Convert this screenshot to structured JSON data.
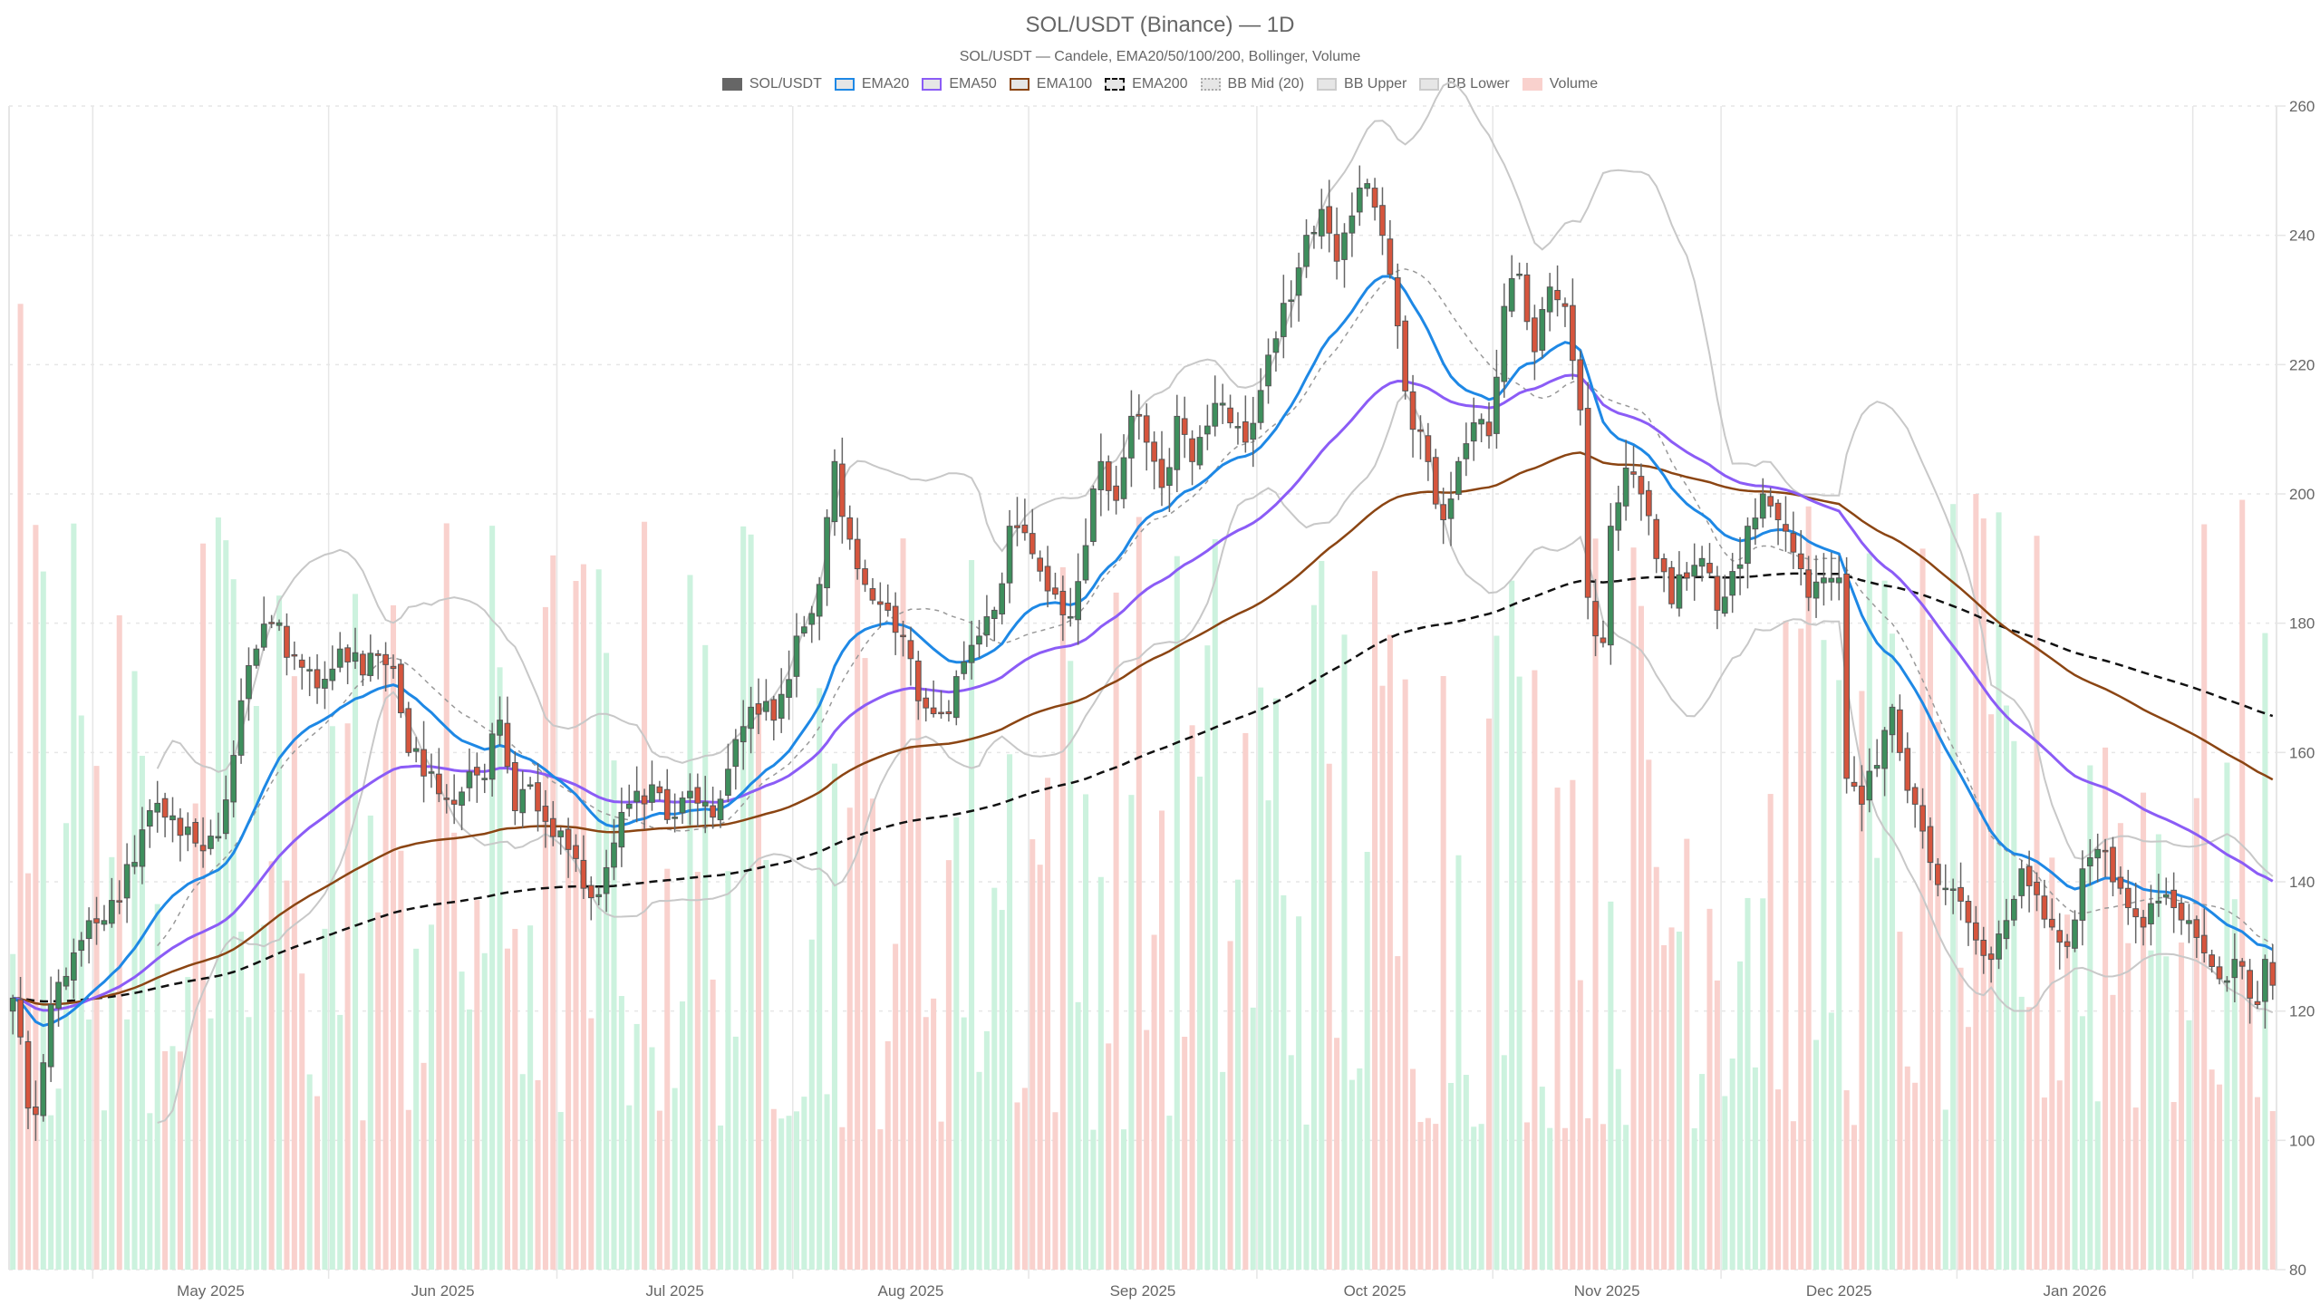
{
  "header": {
    "title": "SOL/USDT (Binance) — 1D",
    "subtitle": "SOL/USDT — Candele, EMA20/50/100/200, Bollinger, Volume"
  },
  "legend": [
    {
      "label": "SOL/USDT",
      "style": "solid-fill",
      "fill": "#666666",
      "border": "#666666"
    },
    {
      "label": "EMA20",
      "style": "line",
      "fill": "#e6e6e6",
      "border": "#1e88e5"
    },
    {
      "label": "EMA50",
      "style": "line",
      "fill": "#e6e6e6",
      "border": "#8b5cf6"
    },
    {
      "label": "EMA100",
      "style": "line",
      "fill": "#e6e6e6",
      "border": "#8b4513"
    },
    {
      "label": "EMA200",
      "style": "dashed",
      "fill": "#e6e6e6",
      "border": "#111111"
    },
    {
      "label": "BB Mid (20)",
      "style": "dotted",
      "fill": "#e6e6e6",
      "border": "#aaaaaa"
    },
    {
      "label": "BB Upper",
      "style": "line",
      "fill": "#e6e6e6",
      "border": "#cccccc"
    },
    {
      "label": "BB Lower",
      "style": "line",
      "fill": "#e6e6e6",
      "border": "#cccccc"
    },
    {
      "label": "Volume",
      "style": "solid-fill",
      "fill": "#f9d1cd",
      "border": "#f9d1cd"
    }
  ],
  "colors": {
    "up": "#3e8f5d",
    "down": "#d6553d",
    "wick": "#666666",
    "vol_up": "#ccf2de",
    "vol_down": "#f9d1cd",
    "ema20": "#1e88e5",
    "ema50": "#8b5cf6",
    "ema100": "#8b4513",
    "ema200": "#111111",
    "bb_mid": "#999999",
    "bb_band": "#c8c8c8",
    "grid": "#e6e6e6"
  },
  "chart_data": {
    "type": "candlestick",
    "title": "SOL/USDT (Binance) — 1D",
    "subtitle": "SOL/USDT — Candele, EMA20/50/100/200, Bollinger, Volume",
    "xlabel": "",
    "ylabel": "",
    "ylim": [
      80,
      260
    ],
    "y_ticks": [
      80,
      100,
      120,
      140,
      160,
      180,
      200,
      220,
      240,
      260
    ],
    "y_axis_position": "right",
    "x_tick_labels": [
      "May 2025",
      "Jun 2025",
      "Jul 2025",
      "Aug 2025",
      "Sep 2025",
      "Oct 2025",
      "Nov 2025",
      "Dec 2025",
      "Jan 2026"
    ],
    "grid": true,
    "legend_position": "top",
    "start_date": "2025-04-20",
    "num_candles": 298,
    "series": [
      {
        "name": "SOL/USDT",
        "type": "candlestick"
      },
      {
        "name": "EMA20",
        "type": "line"
      },
      {
        "name": "EMA50",
        "type": "line"
      },
      {
        "name": "EMA100",
        "type": "line"
      },
      {
        "name": "EMA200",
        "type": "line"
      },
      {
        "name": "BB Mid (20)",
        "type": "line"
      },
      {
        "name": "BB Upper",
        "type": "line"
      },
      {
        "name": "BB Lower",
        "type": "line"
      },
      {
        "name": "Volume",
        "type": "bar"
      }
    ],
    "close_anchors": [
      [
        0,
        122
      ],
      [
        1,
        116
      ],
      [
        2,
        105
      ],
      [
        3,
        104
      ],
      [
        4,
        112
      ],
      [
        5,
        121
      ],
      [
        8,
        129
      ],
      [
        12,
        134
      ],
      [
        16,
        143
      ],
      [
        18,
        151
      ],
      [
        20,
        150
      ],
      [
        24,
        146
      ],
      [
        27,
        147
      ],
      [
        30,
        168
      ],
      [
        32,
        176
      ],
      [
        34,
        180
      ],
      [
        37,
        175
      ],
      [
        40,
        170
      ],
      [
        43,
        176
      ],
      [
        46,
        172
      ],
      [
        48,
        175
      ],
      [
        50,
        173
      ],
      [
        52,
        160
      ],
      [
        55,
        157
      ],
      [
        58,
        152
      ],
      [
        60,
        157
      ],
      [
        62,
        156
      ],
      [
        64,
        165
      ],
      [
        66,
        151
      ],
      [
        68,
        155
      ],
      [
        71,
        147
      ],
      [
        73,
        145
      ],
      [
        75,
        139
      ],
      [
        77,
        138
      ],
      [
        79,
        146
      ],
      [
        81,
        152
      ],
      [
        84,
        155
      ],
      [
        87,
        150
      ],
      [
        89,
        154
      ],
      [
        92,
        150
      ],
      [
        95,
        162
      ],
      [
        97,
        167
      ],
      [
        100,
        165
      ],
      [
        103,
        178
      ],
      [
        106,
        186
      ],
      [
        108,
        205
      ],
      [
        110,
        193
      ],
      [
        112,
        186
      ],
      [
        115,
        182
      ],
      [
        117,
        178
      ],
      [
        119,
        168
      ],
      [
        121,
        166
      ],
      [
        123,
        166
      ],
      [
        125,
        174
      ],
      [
        127,
        178
      ],
      [
        129,
        182
      ],
      [
        131,
        195
      ],
      [
        133,
        194
      ],
      [
        136,
        185
      ],
      [
        139,
        181
      ],
      [
        141,
        192
      ],
      [
        143,
        205
      ],
      [
        145,
        199
      ],
      [
        147,
        212
      ],
      [
        149,
        208
      ],
      [
        151,
        201
      ],
      [
        153,
        212
      ],
      [
        155,
        205
      ],
      [
        158,
        214
      ],
      [
        160,
        211
      ],
      [
        162,
        208
      ],
      [
        164,
        216
      ],
      [
        166,
        224
      ],
      [
        168,
        230
      ],
      [
        170,
        240
      ],
      [
        172,
        244
      ],
      [
        174,
        236
      ],
      [
        176,
        243
      ],
      [
        178,
        248
      ],
      [
        180,
        240
      ],
      [
        182,
        226
      ],
      [
        184,
        210
      ],
      [
        186,
        205
      ],
      [
        188,
        196
      ],
      [
        190,
        205
      ],
      [
        192,
        211
      ],
      [
        194,
        209
      ],
      [
        196,
        229
      ],
      [
        198,
        234
      ],
      [
        200,
        222
      ],
      [
        202,
        232
      ],
      [
        204,
        229
      ],
      [
        206,
        213
      ],
      [
        207,
        184
      ],
      [
        209,
        177
      ],
      [
        210,
        195
      ],
      [
        212,
        204
      ],
      [
        214,
        200
      ],
      [
        216,
        190
      ],
      [
        218,
        183
      ],
      [
        220,
        187
      ],
      [
        222,
        190
      ],
      [
        224,
        182
      ],
      [
        226,
        188
      ],
      [
        228,
        195
      ],
      [
        230,
        200
      ],
      [
        232,
        196
      ],
      [
        234,
        191
      ],
      [
        236,
        184
      ],
      [
        238,
        187
      ],
      [
        240,
        187
      ],
      [
        241,
        156
      ],
      [
        243,
        152
      ],
      [
        245,
        158
      ],
      [
        247,
        167
      ],
      [
        248,
        160
      ],
      [
        250,
        152
      ],
      [
        252,
        143
      ],
      [
        254,
        139
      ],
      [
        256,
        137
      ],
      [
        258,
        131
      ],
      [
        260,
        128
      ],
      [
        262,
        134
      ],
      [
        264,
        142
      ],
      [
        266,
        138
      ],
      [
        268,
        133
      ],
      [
        270,
        130
      ],
      [
        272,
        142
      ],
      [
        274,
        145
      ],
      [
        276,
        140
      ],
      [
        278,
        136
      ],
      [
        280,
        133
      ],
      [
        282,
        137
      ],
      [
        284,
        136
      ],
      [
        286,
        134
      ],
      [
        288,
        129
      ],
      [
        290,
        125
      ],
      [
        292,
        128
      ],
      [
        294,
        122
      ],
      [
        295,
        121
      ],
      [
        296,
        128
      ],
      [
        297,
        124
      ]
    ],
    "volume_range": [
      0,
      0.85
    ]
  }
}
